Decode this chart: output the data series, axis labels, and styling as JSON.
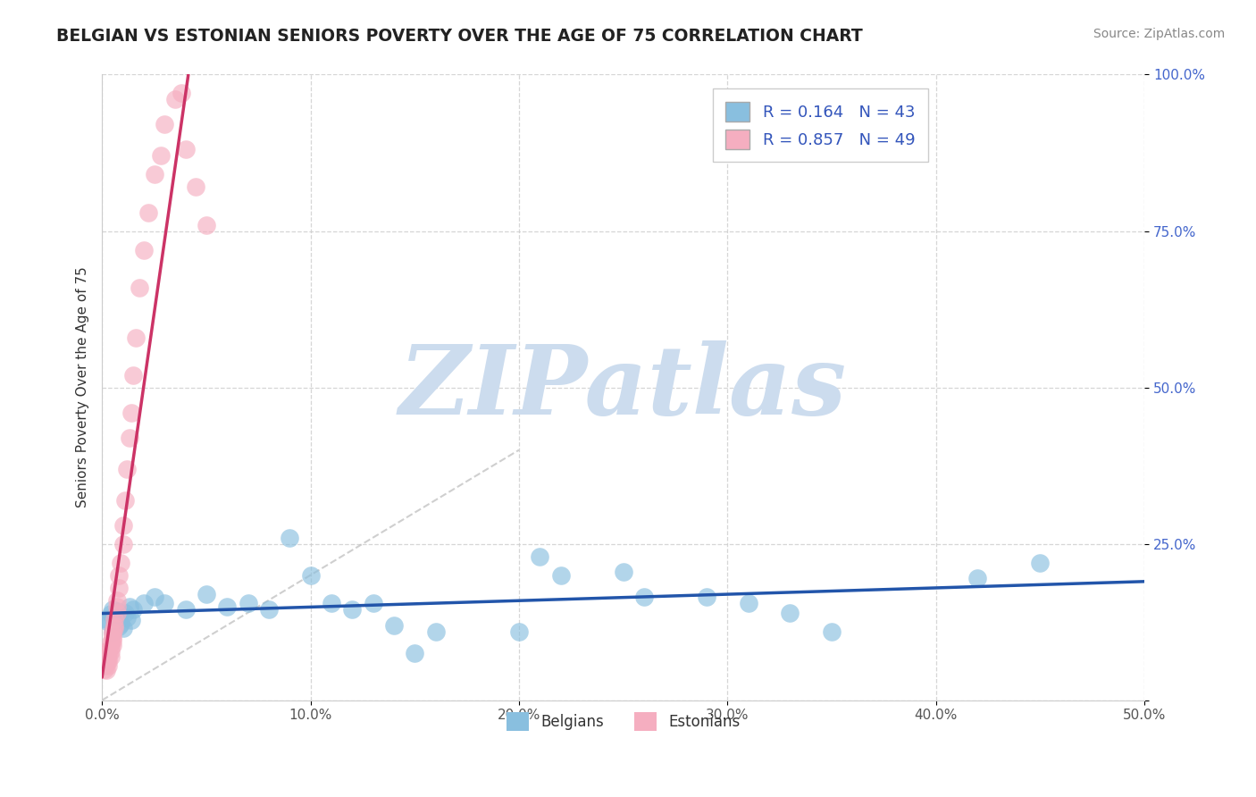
{
  "title": "BELGIAN VS ESTONIAN SENIORS POVERTY OVER THE AGE OF 75 CORRELATION CHART",
  "source": "Source: ZipAtlas.com",
  "ylabel": "Seniors Poverty Over the Age of 75",
  "xlim": [
    0.0,
    0.5
  ],
  "ylim": [
    0.0,
    1.0
  ],
  "xticks": [
    0.0,
    0.1,
    0.2,
    0.3,
    0.4,
    0.5
  ],
  "yticks": [
    0.0,
    0.25,
    0.5,
    0.75,
    1.0
  ],
  "xticklabels": [
    "0.0%",
    "10.0%",
    "20.0%",
    "30.0%",
    "40.0%",
    "50.0%"
  ],
  "yticklabels": [
    "",
    "25.0%",
    "50.0%",
    "75.0%",
    "100.0%"
  ],
  "belgian_R": 0.164,
  "belgian_N": 43,
  "estonian_R": 0.857,
  "estonian_N": 49,
  "belgian_color": "#89bfdf",
  "estonian_color": "#f5aec0",
  "belgian_line_color": "#2255aa",
  "estonian_line_color": "#cc3366",
  "watermark_text": "ZIPatlas",
  "watermark_color": "#ccdcee",
  "legend_text_color": "#3355bb",
  "belgian_x": [
    0.002,
    0.003,
    0.004,
    0.005,
    0.005,
    0.006,
    0.007,
    0.008,
    0.008,
    0.009,
    0.01,
    0.011,
    0.012,
    0.013,
    0.014,
    0.015,
    0.02,
    0.025,
    0.03,
    0.04,
    0.05,
    0.06,
    0.07,
    0.08,
    0.09,
    0.1,
    0.11,
    0.12,
    0.13,
    0.14,
    0.15,
    0.16,
    0.2,
    0.21,
    0.22,
    0.25,
    0.26,
    0.29,
    0.31,
    0.33,
    0.35,
    0.42,
    0.45
  ],
  "belgian_y": [
    0.13,
    0.125,
    0.138,
    0.11,
    0.145,
    0.128,
    0.142,
    0.118,
    0.135,
    0.122,
    0.115,
    0.14,
    0.132,
    0.15,
    0.128,
    0.145,
    0.155,
    0.165,
    0.155,
    0.145,
    0.17,
    0.15,
    0.155,
    0.145,
    0.26,
    0.2,
    0.155,
    0.145,
    0.155,
    0.12,
    0.075,
    0.11,
    0.11,
    0.23,
    0.2,
    0.205,
    0.165,
    0.165,
    0.155,
    0.14,
    0.11,
    0.195,
    0.22
  ],
  "estonian_x": [
    0.001,
    0.001,
    0.001,
    0.002,
    0.002,
    0.002,
    0.002,
    0.003,
    0.003,
    0.003,
    0.003,
    0.003,
    0.004,
    0.004,
    0.004,
    0.004,
    0.005,
    0.005,
    0.005,
    0.005,
    0.005,
    0.006,
    0.006,
    0.006,
    0.007,
    0.007,
    0.007,
    0.008,
    0.008,
    0.009,
    0.01,
    0.01,
    0.011,
    0.012,
    0.013,
    0.014,
    0.015,
    0.016,
    0.018,
    0.02,
    0.022,
    0.025,
    0.028,
    0.03,
    0.035,
    0.038,
    0.04,
    0.045,
    0.05
  ],
  "estonian_y": [
    0.05,
    0.06,
    0.055,
    0.048,
    0.065,
    0.058,
    0.07,
    0.062,
    0.075,
    0.068,
    0.08,
    0.055,
    0.07,
    0.085,
    0.078,
    0.092,
    0.088,
    0.1,
    0.095,
    0.11,
    0.105,
    0.12,
    0.13,
    0.115,
    0.14,
    0.16,
    0.15,
    0.18,
    0.2,
    0.22,
    0.25,
    0.28,
    0.32,
    0.37,
    0.42,
    0.46,
    0.52,
    0.58,
    0.66,
    0.72,
    0.78,
    0.84,
    0.87,
    0.92,
    0.96,
    0.97,
    0.88,
    0.82,
    0.76
  ],
  "ref_line_x": [
    0.0,
    0.2
  ],
  "ref_line_y": [
    0.0,
    0.4
  ]
}
